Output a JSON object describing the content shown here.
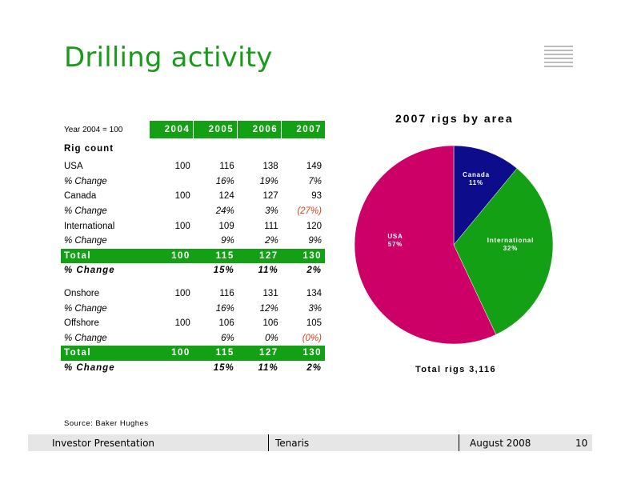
{
  "title": "Drilling activity",
  "table": {
    "base_label": "Year 2004 =  100",
    "years": [
      "2004",
      "2005",
      "2006",
      "2007"
    ],
    "section_label": "Rig count",
    "rows": [
      {
        "label": "USA",
        "type": "value",
        "cells": [
          "100",
          "116",
          "138",
          "149"
        ]
      },
      {
        "label": "% Change",
        "type": "pct",
        "cells": [
          "",
          "16%",
          "19%",
          "7%"
        ]
      },
      {
        "label": "Canada",
        "type": "value",
        "cells": [
          "100",
          "124",
          "127",
          "93"
        ]
      },
      {
        "label": "% Change",
        "type": "pct",
        "cells": [
          "",
          "24%",
          "3%",
          "(27%)"
        ]
      },
      {
        "label": "International",
        "type": "value",
        "cells": [
          "100",
          "109",
          "111",
          "120"
        ]
      },
      {
        "label": "% Change",
        "type": "pct",
        "cells": [
          "",
          "9%",
          "2%",
          "9%"
        ]
      },
      {
        "label": "Total",
        "type": "total",
        "cells": [
          "100",
          "115",
          "127",
          "130"
        ]
      },
      {
        "label": "% Change",
        "type": "totpct",
        "cells": [
          "",
          "15%",
          "11%",
          "2%"
        ]
      },
      {
        "label": "",
        "type": "spacer",
        "cells": []
      },
      {
        "label": "Onshore",
        "type": "value",
        "cells": [
          "100",
          "116",
          "131",
          "134"
        ]
      },
      {
        "label": "% Change",
        "type": "pct",
        "cells": [
          "",
          "16%",
          "12%",
          "3%"
        ]
      },
      {
        "label": "Offshore",
        "type": "value",
        "cells": [
          "100",
          "106",
          "106",
          "105"
        ]
      },
      {
        "label": "% Change",
        "type": "pct",
        "cells": [
          "",
          "6%",
          "0%",
          "(0%)"
        ]
      },
      {
        "label": "Total",
        "type": "total",
        "cells": [
          "100",
          "115",
          "127",
          "130"
        ]
      },
      {
        "label": "% Change",
        "type": "totpct",
        "cells": [
          "",
          "15%",
          "11%",
          "2%"
        ]
      }
    ]
  },
  "chart_data": {
    "type": "pie",
    "title": "2007 rigs by area",
    "slices": [
      {
        "name": "Canada",
        "value": 11,
        "label": "11%",
        "color": "#0d0d8c"
      },
      {
        "name": "International",
        "value": 32,
        "label": "32%",
        "color": "#14a014"
      },
      {
        "name": "USA",
        "value": 57,
        "label": "57%",
        "color": "#cc0066"
      }
    ],
    "annotation": "Total rigs 3,116"
  },
  "source": "Source:  Baker Hughes",
  "footer": {
    "left": "Investor Presentation",
    "center": "Tenaris",
    "date": "August 2008",
    "page": "10"
  },
  "colors": {
    "accent_green": "#1a9a1a",
    "negative": "#e04020",
    "footer_bg": "#e6e6e6"
  }
}
